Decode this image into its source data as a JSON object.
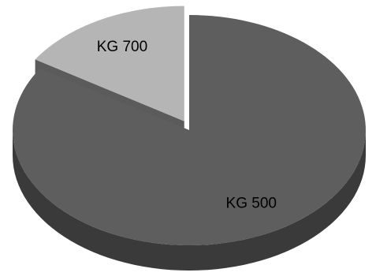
{
  "chart_data": {
    "type": "pie",
    "categories": [
      "KG 500",
      "KG 700"
    ],
    "values": [
      84,
      16
    ],
    "colors": [
      "#5e5e5e",
      "#b5b5b5"
    ],
    "explode": [
      false,
      true
    ]
  }
}
